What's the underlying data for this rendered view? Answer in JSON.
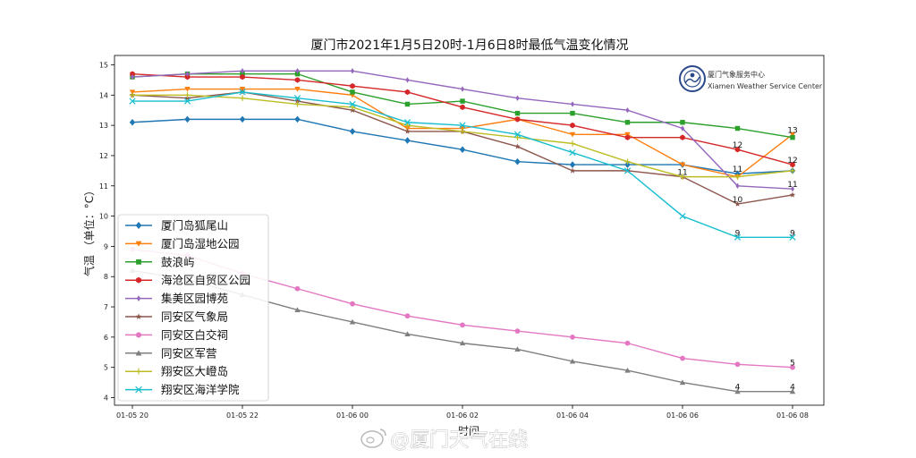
{
  "chart_data": {
    "type": "line",
    "title": "厦门市2021年1月5日20时-1月6日8时最低气温变化情况",
    "xlabel": "时间",
    "ylabel": "气温 （单位：°C）",
    "x": [
      "2021-01-05 20:00",
      "2021-01-05 21:00",
      "2021-01-05 22:00",
      "2021-01-05 23:00",
      "2021-01-06 00:00",
      "2021-01-06 01:00",
      "2021-01-06 02:00",
      "2021-01-06 03:00",
      "2021-01-06 04:00",
      "2021-01-06 05:00",
      "2021-01-06 06:00",
      "2021-01-06 07:00",
      "2021-01-06 08:00"
    ],
    "xticks": [
      {
        "x": "2021-01-05 20:00",
        "label": "01-05 20"
      },
      {
        "x": "2021-01-05 22:00",
        "label": "01-05 22"
      },
      {
        "x": "2021-01-06 00:00",
        "label": "01-06 00"
      },
      {
        "x": "2021-01-06 02:00",
        "label": "01-06 02"
      },
      {
        "x": "2021-01-06 04:00",
        "label": "01-06 04"
      },
      {
        "x": "2021-01-06 06:00",
        "label": "01-06 06"
      },
      {
        "x": "2021-01-06 08:00",
        "label": "01-06 08"
      }
    ],
    "yticks": [
      4,
      5,
      6,
      7,
      8,
      9,
      10,
      11,
      12,
      13,
      14,
      15
    ],
    "ylim": [
      3.8,
      15.2
    ],
    "grid": false,
    "legend_position": "lower-left",
    "series": [
      {
        "name": "厦门岛狐尾山",
        "color": "#1f77b4",
        "marker": "diamond",
        "values": [
          13.1,
          13.2,
          13.2,
          13.2,
          12.8,
          12.5,
          12.2,
          11.8,
          11.7,
          11.7,
          11.7,
          11.4,
          11.5
        ]
      },
      {
        "name": "厦门岛湿地公园",
        "color": "#ff7f0e",
        "marker": "down-triangle",
        "values": [
          14.1,
          14.2,
          14.2,
          14.2,
          14.0,
          12.9,
          12.9,
          13.2,
          12.7,
          12.7,
          11.7,
          11.3,
          12.7
        ]
      },
      {
        "name": "鼓浪屿",
        "color": "#2ca02c",
        "marker": "square",
        "values": [
          14.6,
          14.7,
          14.7,
          14.7,
          14.1,
          13.7,
          13.8,
          13.4,
          13.4,
          13.1,
          13.1,
          12.9,
          12.6
        ]
      },
      {
        "name": "海沧区自贸区公园",
        "color": "#d62728",
        "marker": "hexagon",
        "values": [
          14.7,
          14.6,
          14.6,
          14.5,
          14.3,
          14.1,
          13.6,
          13.2,
          13.0,
          12.6,
          12.6,
          12.2,
          11.7
        ]
      },
      {
        "name": "集美区园博苑",
        "color": "#9467bd",
        "marker": "diamond-thin",
        "values": [
          14.6,
          14.7,
          14.8,
          14.8,
          14.8,
          14.5,
          14.2,
          13.9,
          13.7,
          13.5,
          12.9,
          11.0,
          10.9
        ]
      },
      {
        "name": "同安区气象局",
        "color": "#8c564b",
        "marker": "star",
        "values": [
          14.0,
          13.9,
          14.1,
          13.8,
          13.5,
          12.8,
          12.8,
          12.3,
          11.5,
          11.5,
          11.3,
          10.4,
          10.7
        ]
      },
      {
        "name": "同安区白交祠",
        "color": "#e377c2",
        "marker": "circle",
        "values": [
          8.9,
          8.7,
          8.1,
          7.6,
          7.1,
          6.7,
          6.4,
          6.2,
          6.0,
          5.8,
          5.3,
          5.1,
          5.0
        ]
      },
      {
        "name": "同安区军营",
        "color": "#7f7f7f",
        "marker": "triangle",
        "values": [
          8.2,
          7.9,
          7.4,
          6.9,
          6.5,
          6.1,
          5.8,
          5.6,
          5.2,
          4.9,
          4.5,
          4.2,
          4.2
        ]
      },
      {
        "name": "翔安区大嶝岛",
        "color": "#bcbd22",
        "marker": "plus",
        "values": [
          14.0,
          14.0,
          13.9,
          13.7,
          13.6,
          13.0,
          12.8,
          12.6,
          12.4,
          11.8,
          11.3,
          11.3,
          11.5
        ]
      },
      {
        "name": "翔安区海洋学院",
        "color": "#17becf",
        "marker": "x",
        "values": [
          13.8,
          13.8,
          14.1,
          13.9,
          13.7,
          13.1,
          13.0,
          12.7,
          12.1,
          11.5,
          10.0,
          9.3,
          9.3
        ]
      }
    ],
    "annotations": [
      {
        "x": "2021-01-06 06:00",
        "y": 11.3,
        "text": "11"
      },
      {
        "x": "2021-01-06 07:00",
        "y": 12.2,
        "text": "12"
      },
      {
        "x": "2021-01-06 07:00",
        "y": 11.4,
        "text": "11"
      },
      {
        "x": "2021-01-06 07:00",
        "y": 10.4,
        "text": "10"
      },
      {
        "x": "2021-01-06 07:00",
        "y": 9.3,
        "text": "9"
      },
      {
        "x": "2021-01-06 07:00",
        "y": 4.2,
        "text": "4"
      },
      {
        "x": "2021-01-06 08:00",
        "y": 12.7,
        "text": "13"
      },
      {
        "x": "2021-01-06 08:00",
        "y": 11.7,
        "text": "12"
      },
      {
        "x": "2021-01-06 08:00",
        "y": 10.9,
        "text": "11"
      },
      {
        "x": "2021-01-06 08:00",
        "y": 9.3,
        "text": "9"
      },
      {
        "x": "2021-01-06 08:00",
        "y": 5.0,
        "text": "5"
      },
      {
        "x": "2021-01-06 08:00",
        "y": 4.2,
        "text": "4"
      }
    ]
  },
  "logo": {
    "name_cn": "厦门气象服务中心",
    "name_en": "Xiamen Weather Service Center",
    "icon": "weather-service-logo-icon"
  },
  "watermark": {
    "text": "@厦门天气在线",
    "icon": "weibo-icon"
  }
}
